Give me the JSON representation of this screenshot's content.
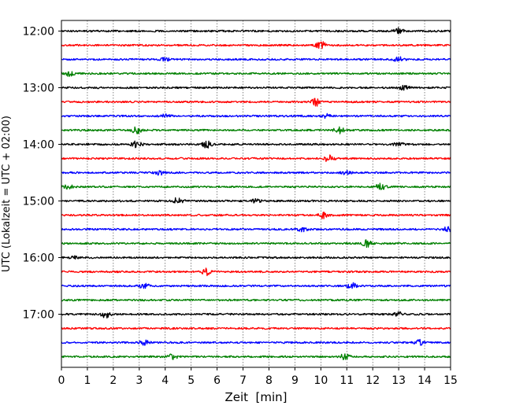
{
  "chart_data": {
    "type": "line",
    "title": "",
    "xlabel": "Zeit  [min]",
    "ylabel": "UTC (Lokalzeit = UTC + 02:00)",
    "xlim": [
      0,
      15
    ],
    "x_ticks": [
      0,
      1,
      2,
      3,
      4,
      5,
      6,
      7,
      8,
      9,
      10,
      11,
      12,
      13,
      14,
      15
    ],
    "y_ticks": [
      "12:00",
      "13:00",
      "14:00",
      "15:00",
      "16:00",
      "17:00"
    ],
    "grid_x": true,
    "row_colors": [
      "#000000",
      "#ff0000",
      "#0000ff",
      "#008000"
    ],
    "traces": [
      {
        "start": "12:00",
        "color": "#000000",
        "events": [
          [
            13.0,
            0.6
          ]
        ]
      },
      {
        "start": "12:15",
        "color": "#ff0000",
        "events": [
          [
            10.0,
            0.9
          ]
        ]
      },
      {
        "start": "12:30",
        "color": "#0000ff",
        "events": [
          [
            4.0,
            0.3
          ],
          [
            13.0,
            0.6
          ]
        ]
      },
      {
        "start": "12:45",
        "color": "#008000",
        "events": [
          [
            0.3,
            0.5
          ]
        ]
      },
      {
        "start": "13:00",
        "color": "#000000",
        "events": [
          [
            13.2,
            0.5
          ]
        ]
      },
      {
        "start": "13:15",
        "color": "#ff0000",
        "events": [
          [
            9.8,
            0.9
          ]
        ]
      },
      {
        "start": "13:30",
        "color": "#0000ff",
        "events": [
          [
            4.0,
            0.4
          ],
          [
            10.2,
            0.4
          ]
        ]
      },
      {
        "start": "13:45",
        "color": "#008000",
        "events": [
          [
            2.9,
            0.7
          ],
          [
            10.7,
            0.7
          ]
        ]
      },
      {
        "start": "14:00",
        "color": "#000000",
        "events": [
          [
            2.9,
            0.7
          ],
          [
            5.6,
            0.8
          ],
          [
            13.0,
            0.4
          ]
        ]
      },
      {
        "start": "14:15",
        "color": "#ff0000",
        "events": [
          [
            10.3,
            0.8
          ]
        ]
      },
      {
        "start": "14:30",
        "color": "#0000ff",
        "events": [
          [
            3.8,
            0.5
          ],
          [
            11.0,
            0.4
          ]
        ]
      },
      {
        "start": "14:45",
        "color": "#008000",
        "events": [
          [
            0.3,
            0.6
          ],
          [
            12.3,
            0.8
          ]
        ]
      },
      {
        "start": "15:00",
        "color": "#000000",
        "events": [
          [
            4.5,
            0.8
          ],
          [
            7.5,
            0.4
          ]
        ]
      },
      {
        "start": "15:15",
        "color": "#ff0000",
        "events": [
          [
            10.1,
            0.7
          ]
        ]
      },
      {
        "start": "15:30",
        "color": "#0000ff",
        "events": [
          [
            9.3,
            0.5
          ],
          [
            14.9,
            0.7
          ]
        ]
      },
      {
        "start": "15:45",
        "color": "#008000",
        "events": [
          [
            11.8,
            0.8
          ]
        ]
      },
      {
        "start": "16:00",
        "color": "#000000",
        "events": [
          [
            0.5,
            0.3
          ]
        ]
      },
      {
        "start": "16:15",
        "color": "#ff0000",
        "events": [
          [
            5.6,
            0.8
          ]
        ]
      },
      {
        "start": "16:30",
        "color": "#0000ff",
        "events": [
          [
            3.2,
            0.7
          ],
          [
            11.2,
            0.6
          ]
        ]
      },
      {
        "start": "16:45",
        "color": "#008000",
        "events": []
      },
      {
        "start": "17:00",
        "color": "#000000",
        "events": [
          [
            1.7,
            0.8
          ],
          [
            13.0,
            0.4
          ]
        ]
      },
      {
        "start": "17:15",
        "color": "#ff0000",
        "events": []
      },
      {
        "start": "17:30",
        "color": "#0000ff",
        "events": [
          [
            3.2,
            0.5
          ],
          [
            13.8,
            0.8
          ]
        ]
      },
      {
        "start": "17:45",
        "color": "#008000",
        "events": [
          [
            4.3,
            0.6
          ],
          [
            10.9,
            0.7
          ]
        ]
      }
    ]
  }
}
